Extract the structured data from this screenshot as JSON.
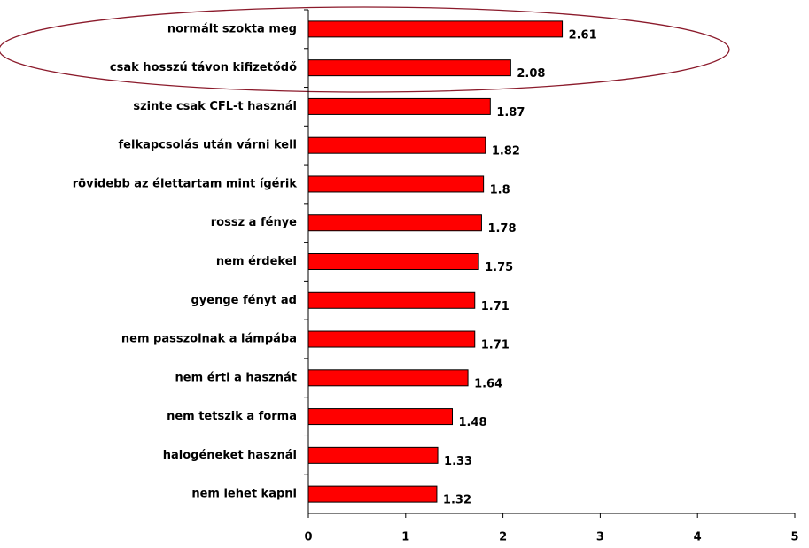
{
  "chart_data": {
    "type": "barh",
    "categories": [
      "normált szokta meg",
      "csak hosszú távon kifizetődő",
      "szinte csak CFL-t használ",
      "felkapcsolás után várni kell",
      "rövidebb az élettartam mint ígérik",
      "rossz a fénye",
      "nem érdekel",
      "gyenge fényt ad",
      "nem passzolnak a lámpába",
      "nem érti a hasznát",
      "nem tetszik a forma",
      "halogéneket használ",
      "nem lehet kapni"
    ],
    "values": [
      2.61,
      2.08,
      1.87,
      1.82,
      1.8,
      1.78,
      1.75,
      1.71,
      1.71,
      1.64,
      1.48,
      1.33,
      1.32
    ],
    "color": "#ff0000",
    "xlim": [
      0,
      5
    ],
    "xticks": [
      0,
      1,
      2,
      3,
      4,
      5
    ]
  }
}
